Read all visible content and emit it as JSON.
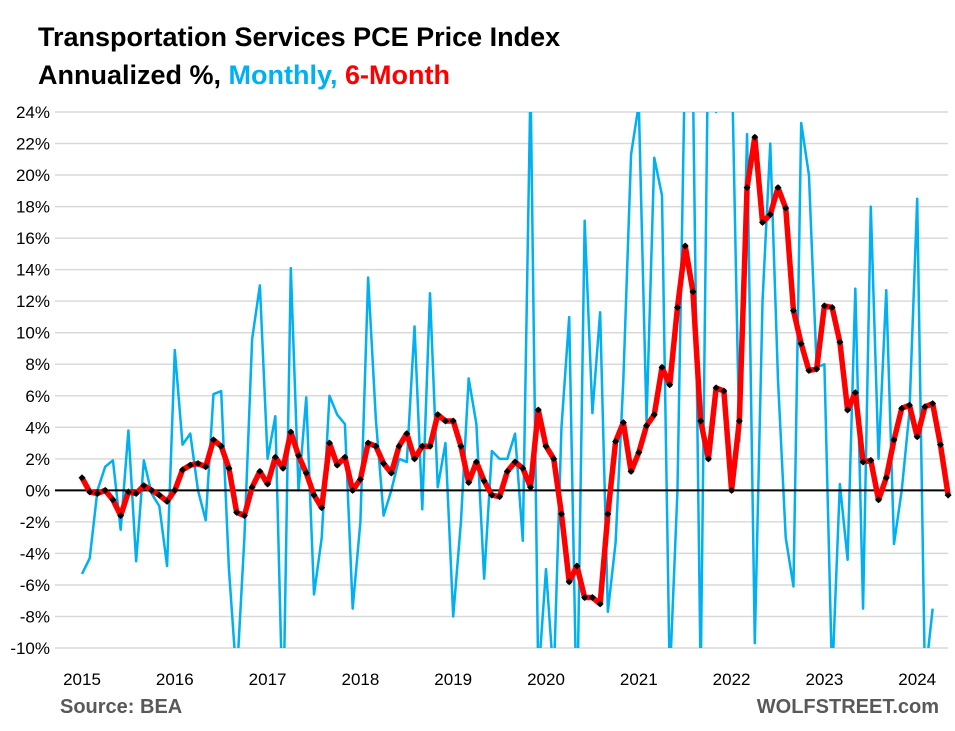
{
  "chart_data": {
    "type": "line",
    "title": "Transportation Services PCE Price Index",
    "subtitle_prefix": "Annualized %,",
    "subtitle_series": [
      "Monthly,",
      "6-Month"
    ],
    "xlabel": "",
    "ylabel": "",
    "ylim": [
      -10,
      24
    ],
    "yticks": [
      -10,
      -8,
      -6,
      -4,
      -2,
      0,
      2,
      4,
      6,
      8,
      10,
      12,
      14,
      16,
      18,
      20,
      22,
      24
    ],
    "ytick_labels": [
      "-10%",
      "-8%",
      "-6%",
      "-4%",
      "-2%",
      "0%",
      "2%",
      "4%",
      "6%",
      "8%",
      "10%",
      "12%",
      "14%",
      "16%",
      "18%",
      "20%",
      "22%",
      "24%"
    ],
    "xtick_labels": [
      "2015",
      "2016",
      "2017",
      "2018",
      "2019",
      "2020",
      "2021",
      "2022",
      "2023",
      "2024"
    ],
    "x_start": "2015-01",
    "frequency": "monthly",
    "grid": true,
    "series": [
      {
        "name": "Monthly",
        "color": "#00b0f0",
        "values": [
          -5.3,
          -4.3,
          0.0,
          1.5,
          1.9,
          -2.5,
          3.8,
          -4.5,
          1.9,
          -0.2,
          -1.0,
          -4.8,
          8.9,
          2.9,
          3.6,
          0.0,
          -1.9,
          6.1,
          6.3,
          -5.0,
          -12,
          -3,
          9.6,
          13.0,
          2.0,
          4.7,
          -15,
          14.1,
          0.0,
          5.9,
          -6.6,
          -3,
          6.0,
          4.8,
          4.2,
          -7.5,
          -2.0,
          13.5,
          4.5,
          -1.6,
          0.0,
          2.0,
          1.8,
          10.4,
          -1.2,
          12.5,
          0.2,
          3.0,
          -8.0,
          -2,
          7.1,
          4.2,
          -5.6,
          2.5,
          2.0,
          2.0,
          3.6,
          -3.2,
          26,
          -12,
          -5,
          -12,
          4,
          11,
          -15,
          17.1,
          4.9,
          11.3,
          -7.7,
          -3.3,
          7,
          21.3,
          24.5,
          4.4,
          21.1,
          18.7,
          -12,
          0,
          28,
          26,
          -12,
          30,
          24,
          30,
          28,
          3.1,
          22.6,
          -9.7,
          12,
          22,
          7,
          -3,
          -6.1,
          23.3,
          20,
          7.8,
          8.0,
          -12,
          0.4,
          -4.4,
          12.8,
          -7.5,
          18.0,
          2,
          12.7,
          -3.4,
          0,
          5,
          18.5,
          -12,
          -7.5
        ]
      },
      {
        "name": "6-Month",
        "color": "#ff0000",
        "values": [
          0.8,
          -0.1,
          -0.2,
          0.0,
          -0.6,
          -1.6,
          -0.1,
          -0.2,
          0.3,
          0.0,
          -0.3,
          -0.7,
          0.0,
          1.3,
          1.6,
          1.7,
          1.5,
          3.2,
          2.8,
          1.4,
          -1.4,
          -1.6,
          0.2,
          1.2,
          0.4,
          2.1,
          1.4,
          3.7,
          2.2,
          1.1,
          -0.3,
          -1.1,
          3.0,
          1.6,
          2.1,
          0.0,
          0.7,
          3.0,
          2.8,
          1.7,
          1.1,
          2.8,
          3.6,
          2.0,
          2.8,
          2.8,
          4.8,
          4.4,
          4.4,
          2.8,
          0.5,
          1.8,
          0.6,
          -0.3,
          -0.4,
          1.2,
          1.8,
          1.4,
          0.2,
          5.1,
          2.8,
          2.0,
          -1.5,
          -5.8,
          -4.8,
          -6.8,
          -6.8,
          -7.2,
          -1.5,
          3.1,
          4.3,
          1.2,
          2.4,
          4.1,
          4.8,
          7.8,
          6.7,
          11.6,
          15.5,
          12.6,
          4.4,
          2.0,
          6.5,
          6.3,
          0.0,
          4.4,
          19.2,
          22.4,
          17.0,
          17.5,
          19.2,
          17.9,
          11.4,
          9.3,
          7.6,
          7.7,
          11.7,
          11.6,
          9.4,
          5.1,
          6.2,
          1.8,
          1.9,
          -0.6,
          0.8,
          3.2,
          5.2,
          5.4,
          3.4,
          5.3,
          5.5,
          2.9,
          -0.3
        ]
      }
    ],
    "source": "Source: BEA",
    "watermark": "WOLFSTREET.com"
  }
}
